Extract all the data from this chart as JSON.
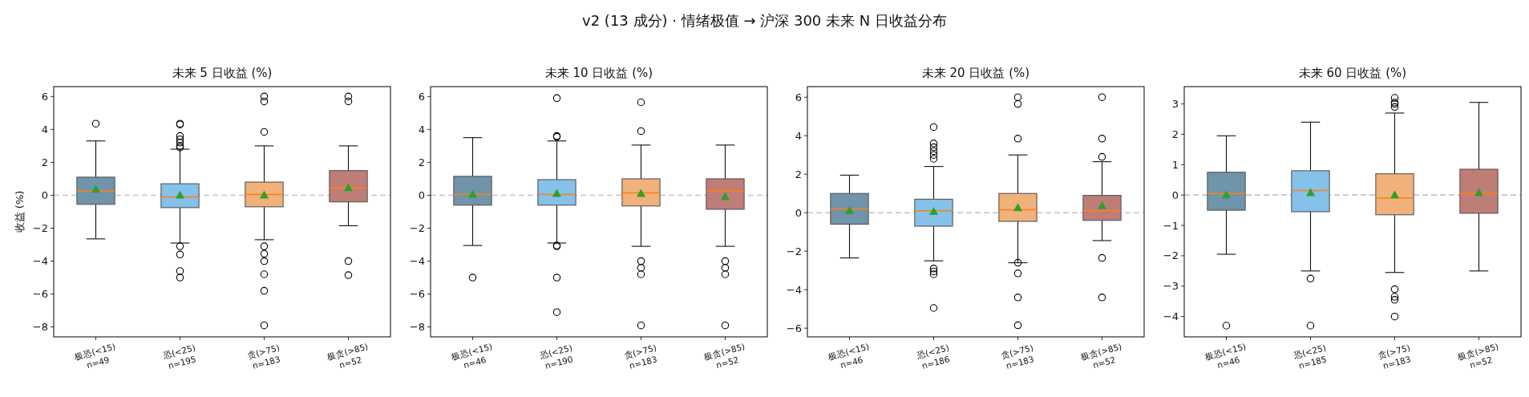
{
  "chart_data": [
    {
      "type": "box",
      "title": "未来 5 日收益 (%)",
      "ylabel": "收益 (%)",
      "annotations": [
        "v2 (13 成分) · 情绪极值 → 沪深 300 未来 N 日收益分布"
      ],
      "categories": [
        "极恐(<15)\nn=49",
        "恐(<25)\nn=195",
        "贪(>75)\nn=183",
        "极贪(>85)\nn=52"
      ],
      "colors": [
        "#7094aa",
        "#85c1e9",
        "#f0b27a",
        "#bf7d78"
      ],
      "boxes": [
        {
          "low": -2.65,
          "q1": -0.55,
          "median": 0.25,
          "q3": 1.1,
          "high": 3.3,
          "mean": 0.35,
          "outliers": [
            4.35
          ]
        },
        {
          "low": -2.9,
          "q1": -0.75,
          "median": -0.1,
          "q3": 0.7,
          "high": 2.8,
          "mean": 0.0,
          "outliers": [
            4.35,
            4.3,
            3.6,
            3.4,
            3.2,
            3.0,
            2.9,
            -3.1,
            -3.6,
            -4.6,
            -5.0
          ]
        },
        {
          "low": -2.7,
          "q1": -0.7,
          "median": 0.05,
          "q3": 0.8,
          "high": 3.0,
          "mean": 0.0,
          "outliers": [
            6.0,
            5.7,
            3.85,
            -3.1,
            -3.55,
            -4.0,
            -4.8,
            -5.8,
            -7.9
          ]
        },
        {
          "low": -1.85,
          "q1": -0.4,
          "median": 0.45,
          "q3": 1.5,
          "high": 3.0,
          "mean": 0.45,
          "outliers": [
            6.0,
            5.7,
            -4.0,
            -4.85
          ]
        }
      ],
      "ylim": [
        -8.6,
        6.6
      ],
      "yticks": [
        -8,
        -6,
        -4,
        -2,
        0,
        2,
        4,
        6
      ],
      "ref_lines": [
        {
          "axis": "y",
          "value": 0,
          "color": "#c4c4c4",
          "line_style": "dashed"
        }
      ]
    },
    {
      "type": "box",
      "title": "未来 10 日收益 (%)",
      "categories": [
        "极恐(<15)\nn=46",
        "恐(<25)\nn=190",
        "贪(>75)\nn=183",
        "极贪(>85)\nn=52"
      ],
      "colors": [
        "#7094aa",
        "#85c1e9",
        "#f0b27a",
        "#bf7d78"
      ],
      "boxes": [
        {
          "low": -3.05,
          "q1": -0.6,
          "median": 0.05,
          "q3": 1.15,
          "high": 3.5,
          "mean": 0.05,
          "outliers": [
            -5.0
          ]
        },
        {
          "low": -2.9,
          "q1": -0.6,
          "median": 0.05,
          "q3": 0.95,
          "high": 3.3,
          "mean": 0.1,
          "outliers": [
            5.9,
            3.6,
            3.55,
            -3.05,
            -3.1,
            -5.0,
            -7.1
          ]
        },
        {
          "low": -3.1,
          "q1": -0.65,
          "median": 0.15,
          "q3": 1.0,
          "high": 3.05,
          "mean": 0.1,
          "outliers": [
            5.65,
            3.9,
            -4.0,
            -4.4,
            -4.8,
            -7.9
          ]
        },
        {
          "low": -3.1,
          "q1": -0.85,
          "median": 0.25,
          "q3": 1.0,
          "high": 3.05,
          "mean": -0.1,
          "outliers": [
            -4.0,
            -4.4,
            -4.8,
            -7.9
          ]
        }
      ],
      "ylim": [
        -8.6,
        6.6
      ],
      "yticks": [
        -8,
        -6,
        -4,
        -2,
        0,
        2,
        4,
        6
      ],
      "ref_lines": [
        {
          "axis": "y",
          "value": 0,
          "color": "#c4c4c4",
          "line_style": "dashed"
        }
      ]
    },
    {
      "type": "box",
      "title": "未来 20 日收益 (%)",
      "categories": [
        "极恐(<15)\nn=46",
        "恐(<25)\nn=186",
        "贪(>75)\nn=183",
        "极贪(>85)\nn=52"
      ],
      "colors": [
        "#7094aa",
        "#85c1e9",
        "#f0b27a",
        "#bf7d78"
      ],
      "boxes": [
        {
          "low": -2.35,
          "q1": -0.6,
          "median": 0.2,
          "q3": 1.0,
          "high": 1.95,
          "mean": 0.1
        },
        {
          "low": -2.5,
          "q1": -0.7,
          "median": 0.1,
          "q3": 0.7,
          "high": 2.4,
          "mean": 0.05,
          "outliers": [
            4.45,
            3.6,
            3.4,
            3.2,
            3.0,
            2.8,
            -2.9,
            -3.05,
            -3.2,
            -4.95
          ]
        },
        {
          "low": -2.6,
          "q1": -0.45,
          "median": 0.15,
          "q3": 1.0,
          "high": 3.0,
          "mean": 0.25,
          "outliers": [
            6.0,
            5.65,
            3.85,
            -2.6,
            -3.15,
            -4.4,
            -5.85
          ]
        },
        {
          "low": -1.45,
          "q1": -0.4,
          "median": 0.1,
          "q3": 0.9,
          "high": 2.65,
          "mean": 0.35,
          "outliers": [
            6.0,
            3.85,
            2.9,
            -2.35,
            -4.4
          ]
        }
      ],
      "ylim": [
        -6.45,
        6.55
      ],
      "yticks": [
        -6,
        -4,
        -2,
        0,
        2,
        4,
        6
      ],
      "ref_lines": [
        {
          "axis": "y",
          "value": 0,
          "color": "#c4c4c4",
          "line_style": "dashed"
        }
      ]
    },
    {
      "type": "box",
      "title": "未来 60 日收益 (%)",
      "categories": [
        "极恐(<15)\nn=46",
        "恐(<25)\nn=185",
        "贪(>75)\nn=183",
        "极贪(>85)\nn=52"
      ],
      "colors": [
        "#7094aa",
        "#85c1e9",
        "#f0b27a",
        "#bf7d78"
      ],
      "boxes": [
        {
          "low": -1.95,
          "q1": -0.5,
          "median": 0.05,
          "q3": 0.75,
          "high": 1.95,
          "mean": 0.0,
          "outliers": [
            -4.3
          ]
        },
        {
          "low": -2.5,
          "q1": -0.55,
          "median": 0.15,
          "q3": 0.8,
          "high": 2.4,
          "mean": 0.07,
          "outliers": [
            -2.75,
            -4.3
          ]
        },
        {
          "low": -2.55,
          "q1": -0.65,
          "median": -0.1,
          "q3": 0.7,
          "high": 2.7,
          "mean": 0.0,
          "outliers": [
            3.2,
            3.05,
            3.0,
            2.9,
            -3.1,
            -3.35,
            -3.45,
            -4.0
          ]
        },
        {
          "low": -2.5,
          "q1": -0.6,
          "median": 0.05,
          "q3": 0.85,
          "high": 3.05,
          "mean": 0.07
        }
      ],
      "ylim": [
        -4.67,
        3.57
      ],
      "yticks": [
        -4,
        -3,
        -2,
        -1,
        0,
        1,
        2,
        3
      ],
      "ref_lines": [
        {
          "axis": "y",
          "value": 0,
          "color": "#c4c4c4",
          "line_style": "dashed"
        }
      ]
    }
  ]
}
